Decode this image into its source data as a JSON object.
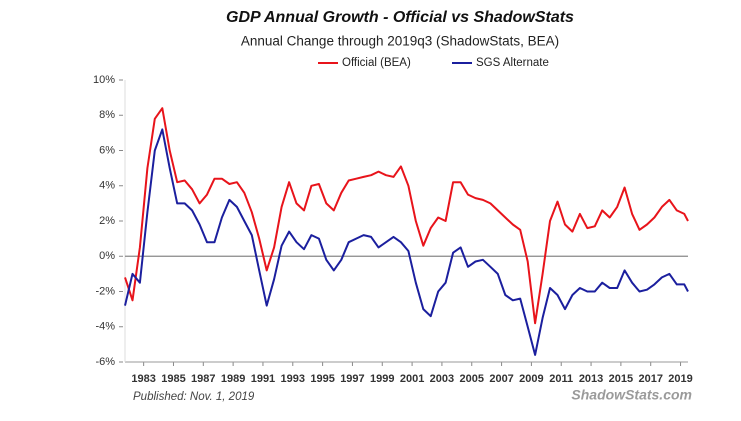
{
  "chart_data": {
    "type": "line",
    "title": "GDP Annual Growth - Official vs ShadowStats",
    "subtitle": "Annual Change through 2019q3  (ShadowStats, BEA)",
    "footnote": "Published: Nov. 1, 2019",
    "source": "ShadowStats.com",
    "x": [
      1981.75,
      1982.25,
      1982.75,
      1983.25,
      1983.75,
      1984.25,
      1984.75,
      1985.25,
      1985.75,
      1986.25,
      1986.75,
      1987.25,
      1987.75,
      1988.25,
      1988.75,
      1989.25,
      1989.75,
      1990.25,
      1990.75,
      1991.25,
      1991.75,
      1992.25,
      1992.75,
      1993.25,
      1993.75,
      1994.25,
      1994.75,
      1995.25,
      1995.75,
      1996.25,
      1996.75,
      1997.25,
      1997.75,
      1998.25,
      1998.75,
      1999.25,
      1999.75,
      2000.25,
      2000.75,
      2001.25,
      2001.75,
      2002.25,
      2002.75,
      2003.25,
      2003.75,
      2004.25,
      2004.75,
      2005.25,
      2005.75,
      2006.25,
      2006.75,
      2007.25,
      2007.75,
      2008.25,
      2008.75,
      2009.25,
      2009.75,
      2010.25,
      2010.75,
      2011.25,
      2011.75,
      2012.25,
      2012.75,
      2013.25,
      2013.75,
      2014.25,
      2014.75,
      2015.25,
      2015.75,
      2016.25,
      2016.75,
      2017.25,
      2017.75,
      2018.25,
      2018.75,
      2019.25,
      2019.5
    ],
    "series": [
      {
        "name": "Official (BEA)",
        "color": "#e8141b",
        "values": [
          -1.2,
          -2.5,
          0.5,
          5.0,
          7.8,
          8.4,
          6.0,
          4.2,
          4.3,
          3.8,
          3.0,
          3.5,
          4.4,
          4.4,
          4.1,
          4.2,
          3.6,
          2.5,
          1.0,
          -0.8,
          0.5,
          2.8,
          4.2,
          3.0,
          2.6,
          4.0,
          4.1,
          3.0,
          2.6,
          3.6,
          4.3,
          4.4,
          4.5,
          4.6,
          4.8,
          4.6,
          4.5,
          5.1,
          4.0,
          2.0,
          0.6,
          1.6,
          2.2,
          2.0,
          4.2,
          4.2,
          3.5,
          3.3,
          3.2,
          3.0,
          2.6,
          2.2,
          1.8,
          1.5,
          -0.3,
          -3.8,
          -1.0,
          2.0,
          3.1,
          1.8,
          1.4,
          2.4,
          1.6,
          1.7,
          2.6,
          2.2,
          2.8,
          3.9,
          2.4,
          1.5,
          1.8,
          2.2,
          2.8,
          3.2,
          2.6,
          2.4,
          2.0
        ]
      },
      {
        "name": "SGS Alternate",
        "color": "#1b1f9e",
        "values": [
          -2.8,
          -1.0,
          -1.5,
          2.5,
          6.0,
          7.2,
          5.0,
          3.0,
          3.0,
          2.6,
          1.8,
          0.8,
          0.8,
          2.2,
          3.2,
          2.8,
          2.0,
          1.2,
          -0.8,
          -2.8,
          -1.3,
          0.6,
          1.4,
          0.8,
          0.4,
          1.2,
          1.0,
          -0.2,
          -0.8,
          -0.2,
          0.8,
          1.0,
          1.2,
          1.1,
          0.5,
          0.8,
          1.1,
          0.8,
          0.3,
          -1.5,
          -3.0,
          -3.4,
          -2.0,
          -1.5,
          0.2,
          0.5,
          -0.6,
          -0.3,
          -0.2,
          -0.6,
          -1.0,
          -2.2,
          -2.5,
          -2.4,
          -4.0,
          -5.6,
          -3.5,
          -1.8,
          -2.2,
          -3.0,
          -2.2,
          -1.8,
          -2.0,
          -2.0,
          -1.5,
          -1.8,
          -1.8,
          -0.8,
          -1.5,
          -2.0,
          -1.9,
          -1.6,
          -1.2,
          -1.0,
          -1.6,
          -1.6,
          -2.0
        ]
      }
    ],
    "xlim": [
      1981.75,
      2019.5
    ],
    "xticks": [
      1983,
      1985,
      1987,
      1989,
      1991,
      1993,
      1995,
      1997,
      1999,
      2001,
      2003,
      2005,
      2007,
      2009,
      2011,
      2013,
      2015,
      2017,
      2019
    ],
    "ylim": [
      -6,
      10
    ],
    "yticks": [
      {
        "value": 10,
        "label": "10%"
      },
      {
        "value": 8,
        "label": "8%"
      },
      {
        "value": 6,
        "label": "6%"
      },
      {
        "value": 4,
        "label": "4%"
      },
      {
        "value": 2,
        "label": "2%"
      },
      {
        "value": 0,
        "label": "0%"
      },
      {
        "value": -2,
        "label": "-2%"
      },
      {
        "value": -4,
        "label": "-4%"
      },
      {
        "value": -6,
        "label": "-6%"
      }
    ],
    "legend": "top"
  }
}
